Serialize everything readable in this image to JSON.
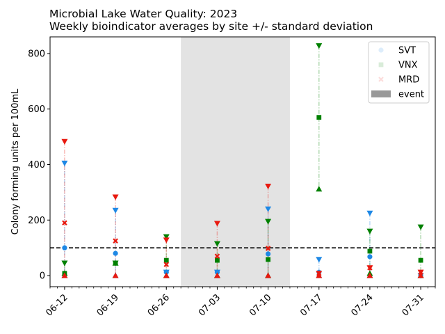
{
  "chart_data": {
    "type": "scatter",
    "title": "Microbial Lake Water Quality: 2023",
    "subtitle": "Weekly bioindicator averages by site +/- standard deviation",
    "xlabel": "",
    "ylabel": "Colony forming units per 100mL",
    "ylim": [
      -40,
      860
    ],
    "yticks": [
      0,
      200,
      400,
      600,
      800
    ],
    "xlim": [
      "2023-06-10",
      "2023-08-02"
    ],
    "xticks": [
      "06-12",
      "06-19",
      "06-26",
      "07-03",
      "07-10",
      "07-17",
      "07-24",
      "07-31"
    ],
    "tick_dates": [
      "2023-06-12",
      "2023-06-19",
      "2023-06-26",
      "2023-07-03",
      "2023-07-10",
      "2023-07-17",
      "2023-07-24",
      "2023-07-31"
    ],
    "threshold": 100,
    "event": {
      "label": "event",
      "start": "2023-06-28",
      "end": "2023-07-13"
    },
    "legend_position": "top-right",
    "series": [
      {
        "name": "SVT",
        "color": "#1e88e5",
        "marker": "circle",
        "x": [
          "2023-06-12",
          "2023-06-19",
          "2023-06-26",
          "2023-07-03",
          "2023-07-10",
          "2023-07-17",
          "2023-07-24",
          "2023-07-31"
        ],
        "mean": [
          100,
          80,
          12,
          12,
          78,
          12,
          68,
          0
        ],
        "upper": [
          405,
          235,
          12,
          12,
          240,
          58,
          225,
          0
        ],
        "lower": [
          0,
          0,
          0,
          0,
          0,
          0,
          0,
          0
        ]
      },
      {
        "name": "VNX",
        "color": "#008000",
        "marker": "square",
        "x": [
          "2023-06-12",
          "2023-06-19",
          "2023-06-26",
          "2023-07-03",
          "2023-07-10",
          "2023-07-17",
          "2023-07-24",
          "2023-07-31"
        ],
        "mean": [
          8,
          45,
          55,
          55,
          58,
          570,
          88,
          55
        ],
        "upper": [
          45,
          45,
          140,
          115,
          195,
          828,
          160,
          175
        ],
        "lower": [
          8,
          45,
          0,
          0,
          0,
          312,
          8,
          0
        ]
      },
      {
        "name": "MRD",
        "color": "#e8190f",
        "marker": "x",
        "x": [
          "2023-06-12",
          "2023-06-19",
          "2023-06-26",
          "2023-07-03",
          "2023-07-10",
          "2023-07-17",
          "2023-07-24",
          "2023-07-31"
        ],
        "mean": [
          190,
          125,
          40,
          70,
          98,
          8,
          28,
          12
        ],
        "upper": [
          483,
          283,
          128,
          188,
          322,
          8,
          28,
          12
        ],
        "lower": [
          0,
          0,
          0,
          0,
          0,
          0,
          0,
          0
        ]
      }
    ]
  },
  "colors": {
    "event_fill": "#e3e3e3",
    "event_legend": "#999999"
  }
}
